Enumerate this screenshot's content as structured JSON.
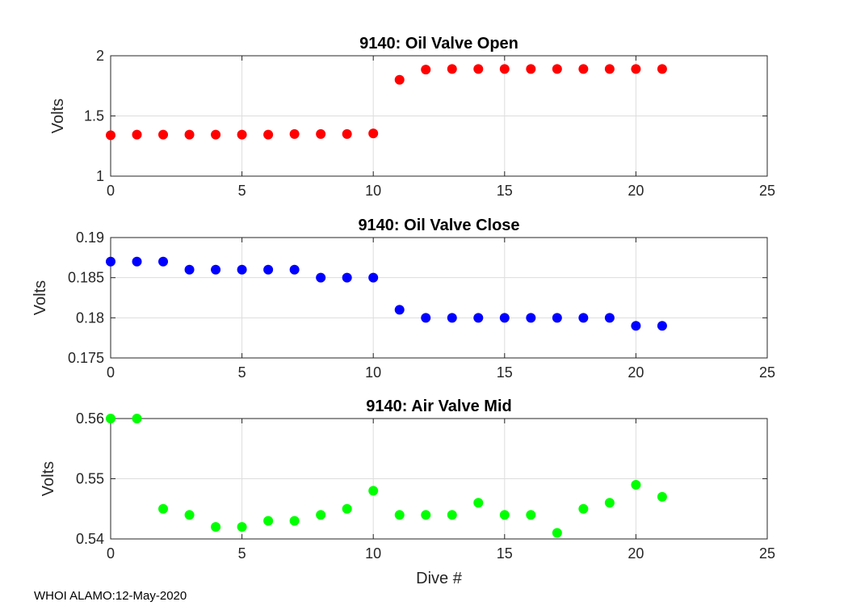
{
  "footer": "WHOI ALAMO:12-May-2020",
  "chart_data": [
    {
      "type": "scatter",
      "title": "9140: Oil Valve Open",
      "ylabel": "Volts",
      "xlabel": "",
      "xlim": [
        0,
        25
      ],
      "ylim": [
        1,
        2
      ],
      "xticks": [
        0,
        5,
        10,
        15,
        20,
        25
      ],
      "yticks": [
        1,
        1.5,
        2
      ],
      "ytick_labels": [
        "1",
        "1.5",
        "2"
      ],
      "grid": true,
      "color": "#ff0000",
      "x": [
        0,
        1,
        2,
        3,
        4,
        5,
        6,
        7,
        8,
        9,
        10,
        11,
        12,
        13,
        14,
        15,
        16,
        17,
        18,
        19,
        20,
        21
      ],
      "y": [
        1.34,
        1.345,
        1.345,
        1.345,
        1.345,
        1.345,
        1.345,
        1.35,
        1.35,
        1.35,
        1.355,
        1.8,
        1.885,
        1.89,
        1.89,
        1.89,
        1.89,
        1.89,
        1.89,
        1.89,
        1.89,
        1.89
      ]
    },
    {
      "type": "scatter",
      "title": "9140: Oil Valve Close",
      "ylabel": "Volts",
      "xlabel": "",
      "xlim": [
        0,
        25
      ],
      "ylim": [
        0.175,
        0.19
      ],
      "xticks": [
        0,
        5,
        10,
        15,
        20,
        25
      ],
      "yticks": [
        0.175,
        0.18,
        0.185,
        0.19
      ],
      "ytick_labels": [
        "0.175",
        "0.18",
        "0.185",
        "0.19"
      ],
      "grid": true,
      "color": "#0000ff",
      "x": [
        0,
        1,
        2,
        3,
        4,
        5,
        6,
        7,
        8,
        9,
        10,
        11,
        12,
        13,
        14,
        15,
        16,
        17,
        18,
        19,
        20,
        21
      ],
      "y": [
        0.187,
        0.187,
        0.187,
        0.186,
        0.186,
        0.186,
        0.186,
        0.186,
        0.185,
        0.185,
        0.185,
        0.181,
        0.18,
        0.18,
        0.18,
        0.18,
        0.18,
        0.18,
        0.18,
        0.18,
        0.179,
        0.179
      ]
    },
    {
      "type": "scatter",
      "title": "9140: Air Valve Mid",
      "ylabel": "Volts",
      "xlabel": "Dive #",
      "xlim": [
        0,
        25
      ],
      "ylim": [
        0.54,
        0.56
      ],
      "xticks": [
        0,
        5,
        10,
        15,
        20,
        25
      ],
      "yticks": [
        0.54,
        0.55,
        0.56
      ],
      "ytick_labels": [
        "0.54",
        "0.55",
        "0.56"
      ],
      "grid": true,
      "color": "#00ff00",
      "x": [
        0,
        1,
        2,
        3,
        4,
        5,
        6,
        7,
        8,
        9,
        10,
        11,
        12,
        13,
        14,
        15,
        16,
        17,
        18,
        19,
        20,
        21
      ],
      "y": [
        0.56,
        0.56,
        0.545,
        0.544,
        0.542,
        0.542,
        0.543,
        0.543,
        0.544,
        0.545,
        0.548,
        0.544,
        0.544,
        0.544,
        0.546,
        0.544,
        0.544,
        0.541,
        0.545,
        0.546,
        0.549,
        0.547
      ]
    }
  ]
}
